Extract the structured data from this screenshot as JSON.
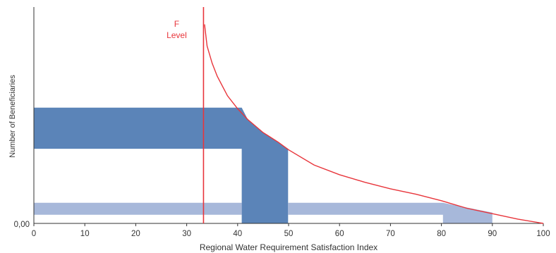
{
  "chart_data": {
    "type": "area",
    "xlabel": "Regional Water Requirement Satisfaction Index",
    "ylabel": "Number of Beneficiaries",
    "xlim": [
      0,
      100
    ],
    "ylim": [
      0,
      100
    ],
    "x_ticks": [
      0,
      10,
      20,
      30,
      40,
      50,
      60,
      70,
      80,
      90,
      100
    ],
    "y_tick_labels": [
      "0,00"
    ],
    "grid": false,
    "threshold": {
      "label_line1": "F",
      "label_line2": "Level",
      "x": 33.3,
      "color": "#e8353b"
    },
    "curve": {
      "color": "#e8353b",
      "points": [
        [
          33.5,
          92
        ],
        [
          34,
          82
        ],
        [
          35,
          74
        ],
        [
          36,
          68
        ],
        [
          38,
          59
        ],
        [
          40,
          53
        ],
        [
          42,
          48
        ],
        [
          45,
          42
        ],
        [
          48,
          37.5
        ],
        [
          50,
          34
        ],
        [
          55,
          27
        ],
        [
          60,
          22.5
        ],
        [
          65,
          19
        ],
        [
          70,
          16
        ],
        [
          75,
          13.5
        ],
        [
          80,
          10.5
        ],
        [
          85,
          7
        ],
        [
          90,
          4.5
        ],
        [
          95,
          2
        ],
        [
          100,
          0
        ]
      ]
    },
    "bands": [
      {
        "color": "#5b84b8",
        "points": [
          [
            0,
            53.5
          ],
          [
            40.8,
            53.5
          ],
          [
            42,
            48
          ],
          [
            45,
            42
          ],
          [
            48,
            37.5
          ],
          [
            49.9,
            34.5
          ],
          [
            49.9,
            0
          ],
          [
            40.8,
            0
          ],
          [
            40.8,
            34.5
          ],
          [
            0,
            34.5
          ]
        ]
      },
      {
        "color": "#a7b8da",
        "points": [
          [
            0,
            9.5
          ],
          [
            40.8,
            9.5
          ],
          [
            40.8,
            4
          ],
          [
            0,
            4
          ]
        ]
      },
      {
        "color": "#a7b8da",
        "points": [
          [
            49.9,
            9.5
          ],
          [
            80.3,
            9.5
          ],
          [
            90,
            5
          ],
          [
            90,
            0
          ],
          [
            80.3,
            0
          ],
          [
            80.3,
            4
          ],
          [
            49.9,
            4
          ]
        ]
      }
    ]
  }
}
